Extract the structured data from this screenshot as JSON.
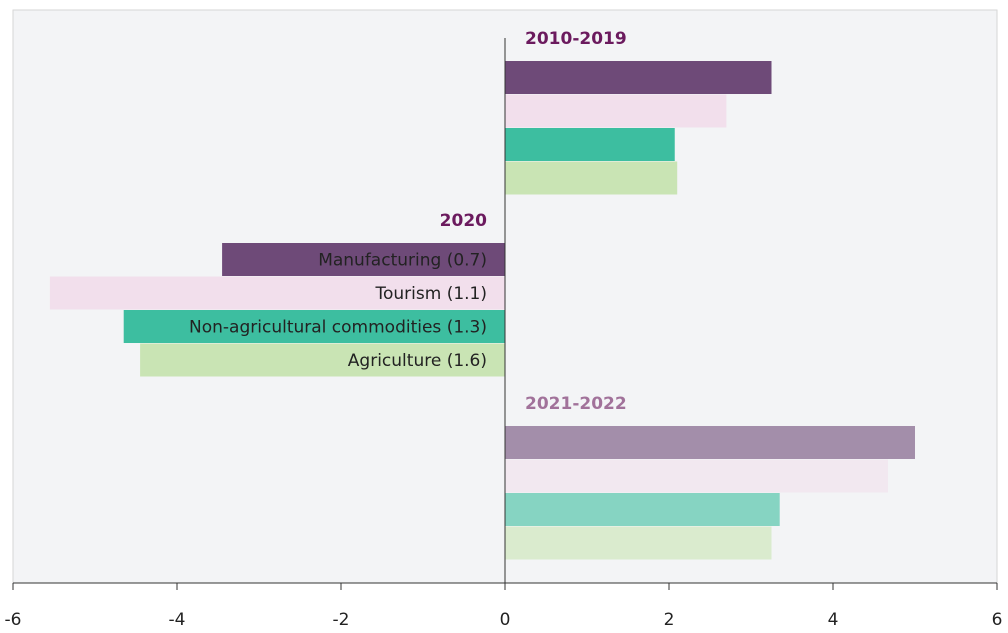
{
  "chart_data": {
    "type": "hbar",
    "categories": [
      "2010-2019",
      "2020",
      "2021-2022"
    ],
    "category_opacity": [
      1,
      1,
      0.6
    ],
    "label_color": "#6b1a5e",
    "series": [
      {
        "name": "Manufacturing (0.7)",
        "color": "#6e4a78",
        "values": [
          3.25,
          -3.45,
          5.0
        ]
      },
      {
        "name": "Tourism (1.1)",
        "color": "#f2dfec",
        "values": [
          2.7,
          -5.55,
          4.67
        ]
      },
      {
        "name": "Non-agricultural commodities (1.3)",
        "color": "#3dbea0",
        "values": [
          2.07,
          -4.65,
          3.35
        ]
      },
      {
        "name": "Agriculture (1.6)",
        "color": "#c9e4b4",
        "values": [
          2.1,
          -4.45,
          3.25
        ]
      }
    ],
    "xlim": [
      -6,
      6
    ],
    "xticks": [
      -6,
      -4,
      -2,
      0,
      2,
      4,
      6
    ]
  }
}
